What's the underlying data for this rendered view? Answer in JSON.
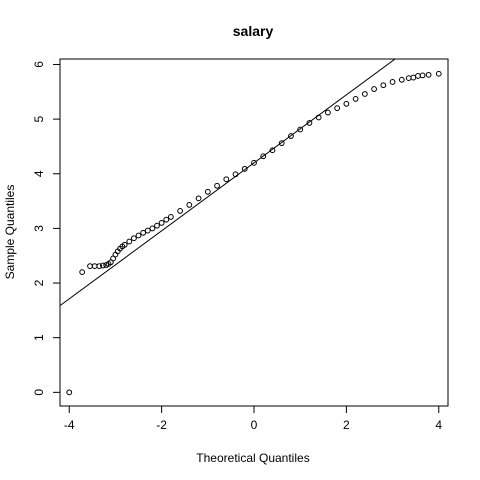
{
  "chart_data": {
    "type": "scatter",
    "title": "salary",
    "xlabel": "Theoretical Quantiles",
    "ylabel": "Sample Quantiles",
    "xlim": [
      -4.2,
      4.2
    ],
    "ylim": [
      -0.25,
      6.1
    ],
    "x_ticks": [
      -4,
      -2,
      0,
      2,
      4
    ],
    "y_ticks": [
      0,
      1,
      2,
      3,
      4,
      5,
      6
    ],
    "grid": false,
    "point_style": "open-circle",
    "colors": {
      "points": "#000000",
      "line": "#000000",
      "axes": "#000000"
    },
    "reference_line": {
      "slope": 0.6222,
      "intercept": 4.2
    },
    "series": [
      {
        "points": [
          [
            -4.0,
            0.0
          ],
          [
            -3.72,
            2.2
          ],
          [
            -3.55,
            2.31
          ],
          [
            -3.45,
            2.31
          ],
          [
            -3.35,
            2.31
          ],
          [
            -3.27,
            2.32
          ],
          [
            -3.2,
            2.33
          ],
          [
            -3.15,
            2.35
          ],
          [
            -3.1,
            2.38
          ],
          [
            -3.05,
            2.45
          ],
          [
            -3.0,
            2.52
          ],
          [
            -2.95,
            2.58
          ],
          [
            -2.9,
            2.63
          ],
          [
            -2.85,
            2.67
          ],
          [
            -2.8,
            2.7
          ],
          [
            -2.7,
            2.76
          ],
          [
            -2.6,
            2.82
          ],
          [
            -2.5,
            2.87
          ],
          [
            -2.4,
            2.92
          ],
          [
            -2.3,
            2.96
          ],
          [
            -2.2,
            3.0
          ],
          [
            -2.1,
            3.05
          ],
          [
            -2.0,
            3.1
          ],
          [
            -1.9,
            3.16
          ],
          [
            -1.8,
            3.21
          ],
          [
            -1.6,
            3.32
          ],
          [
            -1.4,
            3.43
          ],
          [
            -1.2,
            3.55
          ],
          [
            -1.0,
            3.67
          ],
          [
            -0.8,
            3.78
          ],
          [
            -0.6,
            3.9
          ],
          [
            -0.4,
            3.99
          ],
          [
            -0.2,
            4.09
          ],
          [
            0.0,
            4.2
          ],
          [
            0.2,
            4.32
          ],
          [
            0.4,
            4.43
          ],
          [
            0.6,
            4.56
          ],
          [
            0.8,
            4.69
          ],
          [
            1.0,
            4.81
          ],
          [
            1.2,
            4.93
          ],
          [
            1.4,
            5.03
          ],
          [
            1.6,
            5.12
          ],
          [
            1.8,
            5.2
          ],
          [
            2.0,
            5.28
          ],
          [
            2.2,
            5.37
          ],
          [
            2.4,
            5.46
          ],
          [
            2.6,
            5.55
          ],
          [
            2.8,
            5.62
          ],
          [
            3.0,
            5.68
          ],
          [
            3.2,
            5.72
          ],
          [
            3.35,
            5.75
          ],
          [
            3.45,
            5.76
          ],
          [
            3.55,
            5.79
          ],
          [
            3.65,
            5.8
          ],
          [
            3.78,
            5.81
          ],
          [
            4.0,
            5.83
          ]
        ]
      }
    ]
  }
}
